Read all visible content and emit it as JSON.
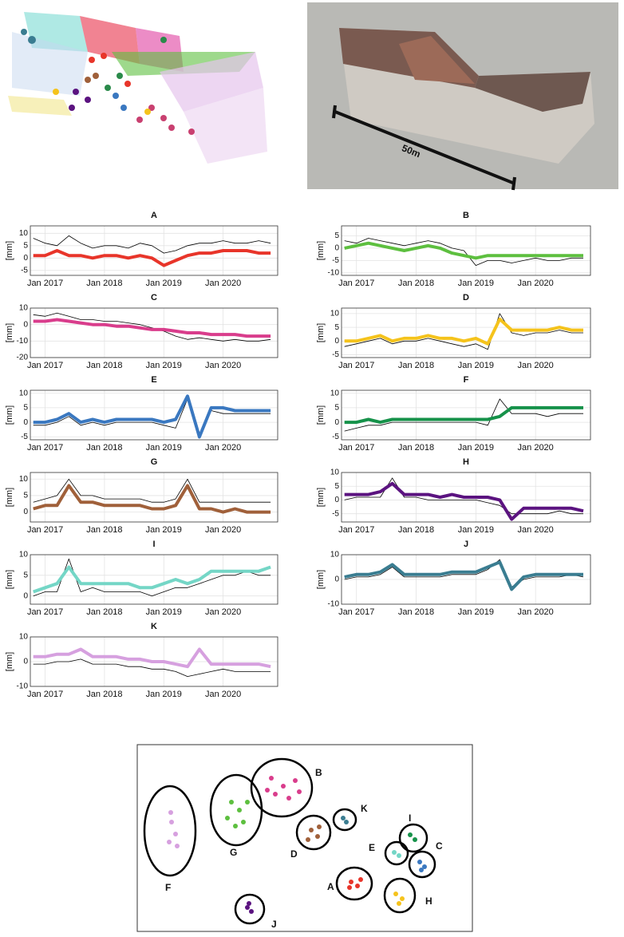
{
  "figure": {
    "scale_label": "50m"
  },
  "cluster_map": {
    "labels": [
      "A",
      "B",
      "C",
      "D",
      "E",
      "F",
      "G",
      "H",
      "I",
      "J",
      "K"
    ]
  },
  "chart_data": [
    {
      "type": "line",
      "title": "A",
      "ylabel": "[mm]",
      "x": [
        2016.8,
        2017.0,
        2017.2,
        2017.4,
        2017.6,
        2017.8,
        2018.0,
        2018.2,
        2018.4,
        2018.6,
        2018.8,
        2019.0,
        2019.2,
        2019.4,
        2019.6,
        2019.8,
        2020.0,
        2020.2,
        2020.4,
        2020.6,
        2020.8
      ],
      "xlim": [
        2016.75,
        2020.92
      ],
      "xticks": [
        {
          "value": 2017,
          "label": "Jan 2017"
        },
        {
          "value": 2018,
          "label": "Jan 2018"
        },
        {
          "value": 2019,
          "label": "Jan 2019"
        },
        {
          "value": 2020,
          "label": "Jan 2020"
        }
      ],
      "ylim": [
        -7,
        13
      ],
      "yticks": [
        -5,
        0,
        5,
        10
      ],
      "grid": true,
      "series": [
        {
          "color": "#000000",
          "values": [
            8,
            6,
            5,
            9,
            6,
            4,
            5,
            5,
            4,
            6,
            5,
            2,
            3,
            5,
            6,
            6,
            7,
            6,
            6,
            7,
            6
          ]
        },
        {
          "color": "#e8352a",
          "values": [
            1,
            1,
            3,
            1,
            1,
            0,
            1,
            1,
            0,
            1,
            0,
            -3,
            -1,
            1,
            2,
            2,
            3,
            3,
            3,
            2,
            2
          ]
        }
      ]
    },
    {
      "type": "line",
      "title": "B",
      "ylabel": "[mm]",
      "x": [
        2016.8,
        2017.0,
        2017.2,
        2017.4,
        2017.6,
        2017.8,
        2018.0,
        2018.2,
        2018.4,
        2018.6,
        2018.8,
        2019.0,
        2019.2,
        2019.4,
        2019.6,
        2019.8,
        2020.0,
        2020.2,
        2020.4,
        2020.6,
        2020.8
      ],
      "xlim": [
        2016.75,
        2020.92
      ],
      "xticks": [
        {
          "value": 2017,
          "label": "Jan 2017"
        },
        {
          "value": 2018,
          "label": "Jan 2018"
        },
        {
          "value": 2019,
          "label": "Jan 2019"
        },
        {
          "value": 2020,
          "label": "Jan 2020"
        }
      ],
      "ylim": [
        -11,
        9
      ],
      "yticks": [
        -10,
        -5,
        0,
        5
      ],
      "grid": true,
      "series": [
        {
          "color": "#000000",
          "values": [
            3,
            2,
            4,
            3,
            2,
            1,
            2,
            3,
            2,
            0,
            -1,
            -7,
            -5,
            -5,
            -6,
            -5,
            -4,
            -5,
            -5,
            -4,
            -4
          ]
        },
        {
          "color": "#5dbf3f",
          "values": [
            0,
            1,
            2,
            1,
            0,
            -1,
            0,
            1,
            0,
            -2,
            -3,
            -4,
            -3,
            -3,
            -3,
            -3,
            -3,
            -3,
            -3,
            -3,
            -3
          ]
        }
      ]
    },
    {
      "type": "line",
      "title": "C",
      "ylabel": "[mm]",
      "x": [
        2016.8,
        2017.0,
        2017.2,
        2017.4,
        2017.6,
        2017.8,
        2018.0,
        2018.2,
        2018.4,
        2018.6,
        2018.8,
        2019.0,
        2019.2,
        2019.4,
        2019.6,
        2019.8,
        2020.0,
        2020.2,
        2020.4,
        2020.6,
        2020.8
      ],
      "xlim": [
        2016.75,
        2020.92
      ],
      "xticks": [
        {
          "value": 2017,
          "label": "Jan 2017"
        },
        {
          "value": 2018,
          "label": "Jan 2018"
        },
        {
          "value": 2019,
          "label": "Jan 2019"
        },
        {
          "value": 2020,
          "label": "Jan 2020"
        }
      ],
      "ylim": [
        -20,
        10
      ],
      "yticks": [
        -20,
        -10,
        0,
        10
      ],
      "grid": true,
      "series": [
        {
          "color": "#000000",
          "values": [
            6,
            5,
            7,
            5,
            3,
            3,
            2,
            2,
            1,
            0,
            -2,
            -4,
            -7,
            -9,
            -8,
            -9,
            -10,
            -9,
            -10,
            -10,
            -9
          ]
        },
        {
          "color": "#d93d8c",
          "values": [
            2,
            2,
            3,
            2,
            1,
            0,
            0,
            -1,
            -1,
            -2,
            -3,
            -3,
            -4,
            -5,
            -5,
            -6,
            -6,
            -6,
            -7,
            -7,
            -7
          ]
        }
      ]
    },
    {
      "type": "line",
      "title": "D",
      "ylabel": "[mm]",
      "x": [
        2016.8,
        2017.0,
        2017.2,
        2017.4,
        2017.6,
        2017.8,
        2018.0,
        2018.2,
        2018.4,
        2018.6,
        2018.8,
        2019.0,
        2019.2,
        2019.4,
        2019.6,
        2019.8,
        2020.0,
        2020.2,
        2020.4,
        2020.6,
        2020.8
      ],
      "xlim": [
        2016.75,
        2020.92
      ],
      "xticks": [
        {
          "value": 2017,
          "label": "Jan 2017"
        },
        {
          "value": 2018,
          "label": "Jan 2018"
        },
        {
          "value": 2019,
          "label": "Jan 2019"
        },
        {
          "value": 2020,
          "label": "Jan 2020"
        }
      ],
      "ylim": [
        -6,
        12
      ],
      "yticks": [
        -5,
        0,
        5,
        10
      ],
      "grid": true,
      "series": [
        {
          "color": "#000000",
          "values": [
            -2,
            -1,
            0,
            1,
            -1,
            0,
            0,
            1,
            0,
            -1,
            -2,
            -1,
            -3,
            10,
            3,
            2,
            3,
            3,
            4,
            3,
            3
          ]
        },
        {
          "color": "#f5c31c",
          "values": [
            0,
            0,
            1,
            2,
            0,
            1,
            1,
            2,
            1,
            1,
            0,
            1,
            -1,
            8,
            4,
            4,
            4,
            4,
            5,
            4,
            4
          ]
        }
      ]
    },
    {
      "type": "line",
      "title": "E",
      "ylabel": "[mm]",
      "x": [
        2016.8,
        2017.0,
        2017.2,
        2017.4,
        2017.6,
        2017.8,
        2018.0,
        2018.2,
        2018.4,
        2018.6,
        2018.8,
        2019.0,
        2019.2,
        2019.4,
        2019.6,
        2019.8,
        2020.0,
        2020.2,
        2020.4,
        2020.6,
        2020.8
      ],
      "xlim": [
        2016.75,
        2020.92
      ],
      "xticks": [
        {
          "value": 2017,
          "label": "Jan 2017"
        },
        {
          "value": 2018,
          "label": "Jan 2018"
        },
        {
          "value": 2019,
          "label": "Jan 2019"
        },
        {
          "value": 2020,
          "label": "Jan 2020"
        }
      ],
      "ylim": [
        -6,
        11
      ],
      "yticks": [
        -5,
        0,
        5,
        10
      ],
      "grid": true,
      "series": [
        {
          "color": "#000000",
          "values": [
            -1,
            -1,
            0,
            2,
            -1,
            0,
            -1,
            0,
            0,
            0,
            0,
            -1,
            -2,
            8,
            -4,
            4,
            3,
            3,
            3,
            3,
            3
          ]
        },
        {
          "color": "#3a78c0",
          "values": [
            0,
            0,
            1,
            3,
            0,
            1,
            0,
            1,
            1,
            1,
            1,
            0,
            1,
            9,
            -5,
            5,
            5,
            4,
            4,
            4,
            4
          ]
        }
      ]
    },
    {
      "type": "line",
      "title": "F",
      "ylabel": "[mm]",
      "x": [
        2016.8,
        2017.0,
        2017.2,
        2017.4,
        2017.6,
        2017.8,
        2018.0,
        2018.2,
        2018.4,
        2018.6,
        2018.8,
        2019.0,
        2019.2,
        2019.4,
        2019.6,
        2019.8,
        2020.0,
        2020.2,
        2020.4,
        2020.6,
        2020.8
      ],
      "xlim": [
        2016.75,
        2020.92
      ],
      "xticks": [
        {
          "value": 2017,
          "label": "Jan 2017"
        },
        {
          "value": 2018,
          "label": "Jan 2018"
        },
        {
          "value": 2019,
          "label": "Jan 2019"
        },
        {
          "value": 2020,
          "label": "Jan 2020"
        }
      ],
      "ylim": [
        -6,
        11
      ],
      "yticks": [
        -5,
        0,
        5,
        10
      ],
      "grid": true,
      "series": [
        {
          "color": "#000000",
          "values": [
            -3,
            -2,
            -1,
            -1,
            0,
            0,
            0,
            0,
            0,
            0,
            0,
            0,
            -1,
            8,
            3,
            3,
            3,
            2,
            3,
            3,
            3
          ]
        },
        {
          "color": "#16924a",
          "values": [
            0,
            0,
            1,
            0,
            1,
            1,
            1,
            1,
            1,
            1,
            1,
            1,
            1,
            2,
            5,
            5,
            5,
            5,
            5,
            5,
            5
          ]
        }
      ]
    },
    {
      "type": "line",
      "title": "G",
      "ylabel": "[mm]",
      "x": [
        2016.8,
        2017.0,
        2017.2,
        2017.4,
        2017.6,
        2017.8,
        2018.0,
        2018.2,
        2018.4,
        2018.6,
        2018.8,
        2019.0,
        2019.2,
        2019.4,
        2019.6,
        2019.8,
        2020.0,
        2020.2,
        2020.4,
        2020.6,
        2020.8
      ],
      "xlim": [
        2016.75,
        2020.92
      ],
      "xticks": [
        {
          "value": 2017,
          "label": "Jan 2017"
        },
        {
          "value": 2018,
          "label": "Jan 2018"
        },
        {
          "value": 2019,
          "label": "Jan 2019"
        },
        {
          "value": 2020,
          "label": "Jan 2020"
        }
      ],
      "ylim": [
        -3,
        12
      ],
      "yticks": [
        0,
        5,
        10
      ],
      "grid": true,
      "series": [
        {
          "color": "#000000",
          "values": [
            3,
            4,
            5,
            10,
            5,
            5,
            4,
            4,
            4,
            4,
            3,
            3,
            4,
            10,
            3,
            3,
            3,
            3,
            3,
            3,
            3
          ]
        },
        {
          "color": "#a0603a",
          "values": [
            1,
            2,
            2,
            8,
            3,
            3,
            2,
            2,
            2,
            2,
            1,
            1,
            2,
            8,
            1,
            1,
            0,
            1,
            0,
            0,
            0
          ]
        }
      ]
    },
    {
      "type": "line",
      "title": "H",
      "ylabel": "[mm]",
      "x": [
        2016.8,
        2017.0,
        2017.2,
        2017.4,
        2017.6,
        2017.8,
        2018.0,
        2018.2,
        2018.4,
        2018.6,
        2018.8,
        2019.0,
        2019.2,
        2019.4,
        2019.6,
        2019.8,
        2020.0,
        2020.2,
        2020.4,
        2020.6,
        2020.8
      ],
      "xlim": [
        2016.75,
        2020.92
      ],
      "xticks": [
        {
          "value": 2017,
          "label": "Jan 2017"
        },
        {
          "value": 2018,
          "label": "Jan 2018"
        },
        {
          "value": 2019,
          "label": "Jan 2019"
        },
        {
          "value": 2020,
          "label": "Jan 2020"
        }
      ],
      "ylim": [
        -8,
        10
      ],
      "yticks": [
        -5,
        0,
        5,
        10
      ],
      "grid": true,
      "series": [
        {
          "color": "#000000",
          "values": [
            0,
            1,
            1,
            1,
            8,
            1,
            1,
            0,
            0,
            0,
            0,
            0,
            -1,
            -2,
            -5,
            -5,
            -5,
            -5,
            -4,
            -5,
            -5
          ]
        },
        {
          "color": "#5b1380",
          "values": [
            2,
            2,
            2,
            3,
            6,
            2,
            2,
            2,
            1,
            2,
            1,
            1,
            1,
            0,
            -7,
            -3,
            -3,
            -3,
            -3,
            -3,
            -4
          ]
        }
      ]
    },
    {
      "type": "line",
      "title": "I",
      "ylabel": "[mm]",
      "x": [
        2016.8,
        2017.0,
        2017.2,
        2017.4,
        2017.6,
        2017.8,
        2018.0,
        2018.2,
        2018.4,
        2018.6,
        2018.8,
        2019.0,
        2019.2,
        2019.4,
        2019.6,
        2019.8,
        2020.0,
        2020.2,
        2020.4,
        2020.6,
        2020.8
      ],
      "xlim": [
        2016.75,
        2020.92
      ],
      "xticks": [
        {
          "value": 2017,
          "label": "Jan 2017"
        },
        {
          "value": 2018,
          "label": "Jan 2018"
        },
        {
          "value": 2019,
          "label": "Jan 2019"
        },
        {
          "value": 2020,
          "label": "Jan 2020"
        }
      ],
      "ylim": [
        -2,
        10
      ],
      "yticks": [
        0,
        5,
        10
      ],
      "grid": true,
      "series": [
        {
          "color": "#000000",
          "values": [
            0,
            1,
            1,
            9,
            1,
            2,
            1,
            1,
            1,
            1,
            0,
            1,
            2,
            2,
            3,
            4,
            5,
            5,
            6,
            5,
            5
          ]
        },
        {
          "color": "#74d6c6",
          "values": [
            1,
            2,
            3,
            7,
            3,
            3,
            3,
            3,
            3,
            2,
            2,
            3,
            4,
            3,
            4,
            6,
            6,
            6,
            6,
            6,
            7
          ]
        }
      ]
    },
    {
      "type": "line",
      "title": "J",
      "ylabel": "[mm]",
      "x": [
        2016.8,
        2017.0,
        2017.2,
        2017.4,
        2017.6,
        2017.8,
        2018.0,
        2018.2,
        2018.4,
        2018.6,
        2018.8,
        2019.0,
        2019.2,
        2019.4,
        2019.6,
        2019.8,
        2020.0,
        2020.2,
        2020.4,
        2020.6,
        2020.8
      ],
      "xlim": [
        2016.75,
        2020.92
      ],
      "xticks": [
        {
          "value": 2017,
          "label": "Jan 2017"
        },
        {
          "value": 2018,
          "label": "Jan 2018"
        },
        {
          "value": 2019,
          "label": "Jan 2019"
        },
        {
          "value": 2020,
          "label": "Jan 2020"
        }
      ],
      "ylim": [
        -10,
        10
      ],
      "yticks": [
        -10,
        0,
        10
      ],
      "grid": true,
      "series": [
        {
          "color": "#000000",
          "values": [
            0,
            1,
            1,
            2,
            5,
            1,
            1,
            1,
            1,
            2,
            2,
            2,
            4,
            8,
            -3,
            0,
            1,
            1,
            1,
            2,
            1
          ]
        },
        {
          "color": "#3a7d91",
          "values": [
            1,
            2,
            2,
            3,
            6,
            2,
            2,
            2,
            2,
            3,
            3,
            3,
            5,
            7,
            -4,
            1,
            2,
            2,
            2,
            2,
            2
          ]
        }
      ]
    },
    {
      "type": "line",
      "title": "K",
      "ylabel": "[mm]",
      "x": [
        2016.8,
        2017.0,
        2017.2,
        2017.4,
        2017.6,
        2017.8,
        2018.0,
        2018.2,
        2018.4,
        2018.6,
        2018.8,
        2019.0,
        2019.2,
        2019.4,
        2019.6,
        2019.8,
        2020.0,
        2020.2,
        2020.4,
        2020.6,
        2020.8
      ],
      "xlim": [
        2016.75,
        2020.92
      ],
      "xticks": [
        {
          "value": 2017,
          "label": "Jan 2017"
        },
        {
          "value": 2018,
          "label": "Jan 2018"
        },
        {
          "value": 2019,
          "label": "Jan 2019"
        },
        {
          "value": 2020,
          "label": "Jan 2020"
        }
      ],
      "ylim": [
        -10,
        10
      ],
      "yticks": [
        -10,
        0,
        10
      ],
      "grid": true,
      "series": [
        {
          "color": "#000000",
          "values": [
            -1,
            -1,
            0,
            0,
            1,
            -1,
            -1,
            -1,
            -2,
            -2,
            -3,
            -3,
            -4,
            -6,
            -5,
            -4,
            -3,
            -4,
            -4,
            -4,
            -4
          ]
        },
        {
          "color": "#d6a0df",
          "values": [
            2,
            2,
            3,
            3,
            5,
            2,
            2,
            2,
            1,
            1,
            0,
            0,
            -1,
            -2,
            5,
            -1,
            -1,
            -1,
            -1,
            -1,
            -2
          ]
        }
      ]
    }
  ]
}
